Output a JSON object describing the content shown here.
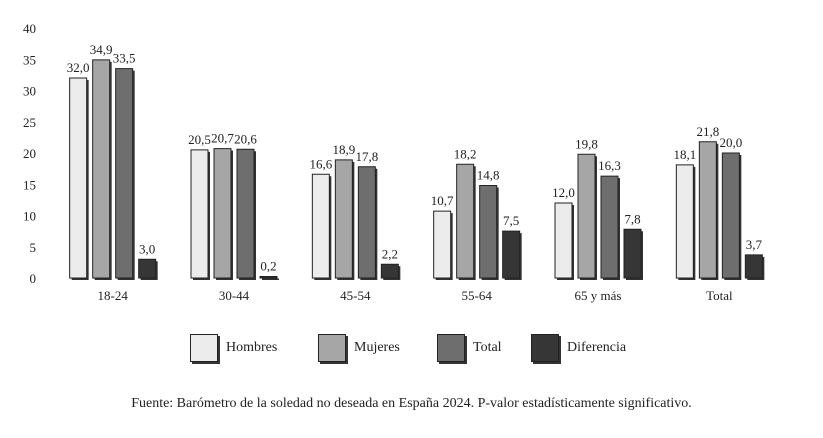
{
  "chart_data": {
    "type": "bar",
    "categories": [
      "18-24",
      "30-44",
      "45-54",
      "55-64",
      "65 y más",
      "Total"
    ],
    "series": [
      {
        "name": "Hombres",
        "values": [
          32.0,
          20.5,
          16.6,
          10.7,
          12.0,
          18.1
        ],
        "labels": [
          "32,0",
          "20,5",
          "16,6",
          "10,7",
          "12,0",
          "18,1"
        ],
        "color": "#ececec"
      },
      {
        "name": "Mujeres",
        "values": [
          34.9,
          20.7,
          18.9,
          18.2,
          19.8,
          21.8
        ],
        "labels": [
          "34,9",
          "20,7",
          "18,9",
          "18,2",
          "19,8",
          "21,8"
        ],
        "color": "#a6a6a6"
      },
      {
        "name": "Total",
        "values": [
          33.5,
          20.6,
          17.8,
          14.8,
          16.3,
          20.0
        ],
        "labels": [
          "33,5",
          "20,6",
          "17,8",
          "14,8",
          "16,3",
          "20,0"
        ],
        "color": "#6e6e6e"
      },
      {
        "name": "Diferencia",
        "values": [
          3.0,
          0.2,
          2.2,
          7.5,
          7.8,
          3.7
        ],
        "labels": [
          "3,0",
          "0,2",
          "2,2",
          "7,5",
          "7,8",
          "3,7"
        ],
        "color": "#363636"
      }
    ],
    "yticks": [
      0,
      5,
      10,
      15,
      20,
      25,
      30,
      35,
      40
    ],
    "ylim": [
      0,
      40
    ],
    "grid": false,
    "legend_position": "bottom"
  },
  "source_note": "Fuente: Barómetro de la soledad no deseada en España 2024. P-valor estadísticamente significativo."
}
